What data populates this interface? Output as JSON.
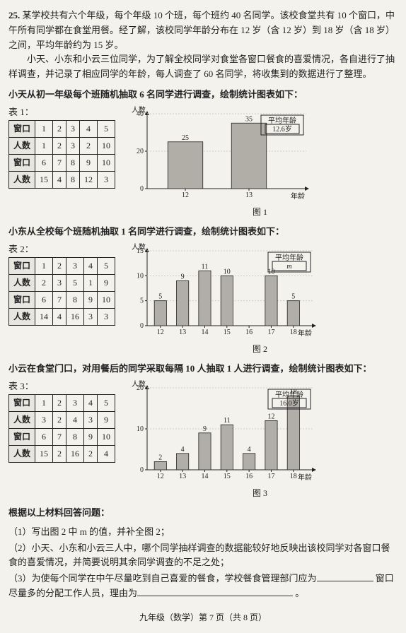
{
  "question_number": "25.",
  "intro_p1": "某学校共有六个年级，每个年级 10 个班，每个班约 40 名同学。该校食堂共有 10 个窗口，中午所有同学都在食堂用餐。经了解，该校同学年龄分布在 12 岁（含 12 岁）到 18 岁（含 18 岁）之间，平均年龄约为 15 岁。",
  "intro_p2": "小天、小东和小云三位同学，为了解全校同学对食堂各窗口餐食的喜爱情况，各自进行了抽样调查，并记录了相应同学的年龄，每人调查了 60 名同学，将收集到的数据进行了整理。",
  "tian_method": "小天从初一年级每个班随机抽取 6 名同学进行调查，绘制统计图表如下：",
  "dong_method": "小东从全校每个班随机抽取 1 名同学进行调查，绘制统计图表如下：",
  "yun_method": "小云在食堂门口，对用餐后的同学采取每隔 10 人抽取 1 人进行调查，绘制统计图表如下：",
  "table_labels": {
    "t1": "表 1：",
    "t2": "表 2：",
    "t3": "表 3："
  },
  "headers": {
    "window": "窗口",
    "count": "人数"
  },
  "fig_labels": {
    "f1": "图 1",
    "f2": "图 2",
    "f3": "图 3"
  },
  "avg_label": "平均年龄",
  "table1": {
    "row1_win": [
      "1",
      "2",
      "3",
      "4",
      "5"
    ],
    "row1_cnt": [
      "1",
      "2",
      "3",
      "2",
      "10"
    ],
    "row2_win": [
      "6",
      "7",
      "8",
      "9",
      "10"
    ],
    "row2_cnt": [
      "15",
      "4",
      "8",
      "12",
      "3"
    ]
  },
  "table2": {
    "row1_win": [
      "1",
      "2",
      "3",
      "4",
      "5"
    ],
    "row1_cnt": [
      "2",
      "3",
      "5",
      "1",
      "9"
    ],
    "row2_win": [
      "6",
      "7",
      "8",
      "9",
      "10"
    ],
    "row2_cnt": [
      "14",
      "4",
      "16",
      "3",
      "3"
    ]
  },
  "table3": {
    "row1_win": [
      "1",
      "2",
      "3",
      "4",
      "5"
    ],
    "row1_cnt": [
      "3",
      "2",
      "4",
      "3",
      "9"
    ],
    "row2_win": [
      "6",
      "7",
      "8",
      "9",
      "10"
    ],
    "row2_cnt": [
      "15",
      "2",
      "16",
      "2",
      "4"
    ]
  },
  "chart1": {
    "type": "bar",
    "avg": "12.6岁",
    "y_label": "人数",
    "x_label": "年龄",
    "ylim": [
      0,
      40
    ],
    "yticks": [
      0,
      20,
      40
    ],
    "categories": [
      "12",
      "13"
    ],
    "values": [
      25,
      35
    ],
    "bar_color": "#b0aea7",
    "border_color": "#222",
    "grid_color": "#888"
  },
  "chart2": {
    "type": "bar",
    "avg": "m",
    "y_label": "人数",
    "x_label": "年龄",
    "ylim": [
      0,
      15
    ],
    "yticks": [
      0,
      5,
      10,
      15
    ],
    "categories": [
      "12",
      "13",
      "14",
      "15",
      "16",
      "17",
      "18"
    ],
    "values": [
      5,
      9,
      11,
      10,
      null,
      10,
      5
    ],
    "bar_color": "#b0aea7",
    "border_color": "#222"
  },
  "chart3": {
    "type": "bar",
    "avg": "16.0岁",
    "y_label": "人数",
    "x_label": "年龄",
    "ylim": [
      0,
      20
    ],
    "yticks": [
      0,
      10,
      20
    ],
    "categories": [
      "12",
      "13",
      "14",
      "15",
      "16",
      "17",
      "18"
    ],
    "values": [
      2,
      4,
      9,
      11,
      4,
      12,
      18
    ],
    "bar_color": "#b0aea7",
    "border_color": "#222"
  },
  "questions_intro": "根据以上材料回答问题：",
  "q1": "（1）写出图 2 中 m 的值，并补全图 2；",
  "q2": "（2）小天、小东和小云三人中，哪个同学抽样调查的数据能较好地反映出该校同学对各窗口餐食的喜爱情况，并简要说明其余同学调查的不足之处；",
  "q3a": "（3）为使每个同学在中午尽量吃到自己喜爱的餐食，学校餐食管理部门应为",
  "q3b": "窗口尽量多的分配工作人员，理由为",
  "q3c": "。",
  "footer": "九年级（数学）第 7 页（共 8 页）"
}
